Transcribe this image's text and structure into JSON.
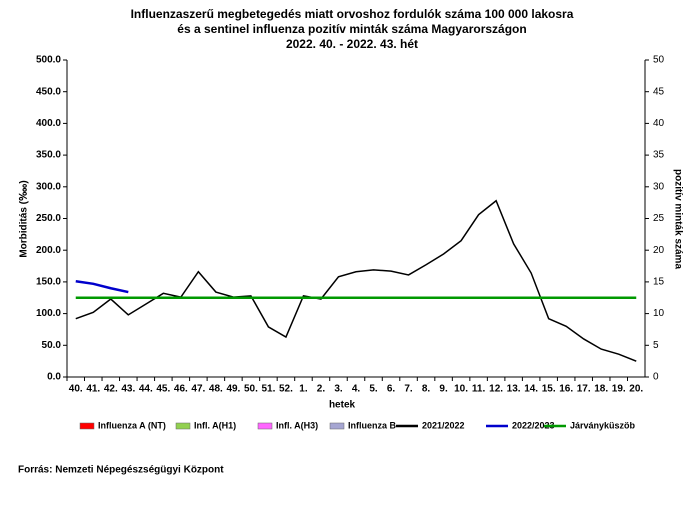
{
  "chart_data": {
    "type": "line",
    "title": [
      "Influenzaszerű megbetegedés miatt orvoshoz fordulók száma 100 000 lakosra",
      "és a sentinel influenza pozitív minták száma Magyarországon",
      "2022. 40. - 2022. 43. hét"
    ],
    "x_label": "hetek",
    "y_label": "Morbiditás (‱)",
    "y2_label": "pozitív minták száma",
    "source": "Forrás: Nemzeti Népegészségügyi Központ",
    "categories": [
      "40.",
      "41.",
      "42.",
      "43.",
      "44.",
      "45.",
      "46.",
      "47.",
      "48.",
      "49.",
      "50.",
      "51.",
      "52.",
      "1.",
      "2.",
      "3.",
      "4.",
      "5.",
      "6.",
      "7.",
      "8.",
      "9.",
      "10.",
      "11.",
      "12.",
      "13.",
      "14.",
      "15.",
      "16.",
      "17.",
      "18.",
      "19.",
      "20."
    ],
    "ylim": [
      0,
      500
    ],
    "yticks": [
      {
        "value": 0,
        "label": "0.0"
      },
      {
        "value": 50,
        "label": "50.0"
      },
      {
        "value": 100,
        "label": "100.0"
      },
      {
        "value": 150,
        "label": "150.0"
      },
      {
        "value": 200,
        "label": "200.0"
      },
      {
        "value": 250,
        "label": "250.0"
      },
      {
        "value": 300,
        "label": "300.0"
      },
      {
        "value": 350,
        "label": "350.0"
      },
      {
        "value": 400,
        "label": "400.0"
      },
      {
        "value": 450,
        "label": "450.0"
      },
      {
        "value": 500,
        "label": "500.0"
      }
    ],
    "y2lim": [
      0,
      50
    ],
    "y2ticks": [
      0,
      5,
      10,
      15,
      20,
      25,
      30,
      35,
      40,
      45,
      50
    ],
    "series": [
      {
        "name": "Influenza A (NT)",
        "color": "#ff0000",
        "type": "bar",
        "axis": "y2",
        "values": [
          null,
          null,
          null,
          null,
          null,
          null,
          null,
          null,
          null,
          null,
          null,
          null,
          null,
          null,
          null,
          null,
          null,
          null,
          null,
          null,
          null,
          null,
          null,
          null,
          null,
          null,
          null,
          null,
          null,
          null,
          null,
          null,
          null
        ]
      },
      {
        "name": "Infl. A(H1)",
        "color": "#92d050",
        "type": "bar",
        "axis": "y2",
        "values": [
          null,
          null,
          null,
          null,
          null,
          null,
          null,
          null,
          null,
          null,
          null,
          null,
          null,
          null,
          null,
          null,
          null,
          null,
          null,
          null,
          null,
          null,
          null,
          null,
          null,
          null,
          null,
          null,
          null,
          null,
          null,
          null,
          null
        ]
      },
      {
        "name": "Infl. A(H3)",
        "color": "#ff66ff",
        "type": "bar",
        "axis": "y2",
        "values": [
          null,
          null,
          null,
          null,
          null,
          null,
          null,
          null,
          null,
          null,
          null,
          null,
          null,
          null,
          null,
          null,
          null,
          null,
          null,
          null,
          null,
          null,
          null,
          null,
          null,
          null,
          null,
          null,
          null,
          null,
          null,
          null,
          null
        ]
      },
      {
        "name": "Influenza B",
        "color": "#a6a6d2",
        "type": "bar",
        "axis": "y2",
        "values": [
          null,
          null,
          null,
          null,
          null,
          null,
          null,
          null,
          null,
          null,
          null,
          null,
          null,
          null,
          null,
          null,
          null,
          null,
          null,
          null,
          null,
          null,
          null,
          null,
          null,
          null,
          null,
          null,
          null,
          null,
          null,
          null,
          null
        ]
      },
      {
        "name": "2021/2022",
        "color": "#000000",
        "type": "line",
        "values": [
          92,
          102,
          123,
          98,
          115,
          132,
          126,
          166,
          134,
          126,
          128,
          79,
          63,
          128,
          123,
          158,
          166,
          169,
          167,
          161,
          177,
          194,
          215,
          256,
          278,
          210,
          164,
          92,
          80,
          60,
          44,
          36,
          25
        ]
      },
      {
        "name": "2022/2023",
        "color": "#0000cc",
        "type": "line",
        "values": [
          151,
          147,
          140,
          134,
          null,
          null,
          null,
          null,
          null,
          null,
          null,
          null,
          null,
          null,
          null,
          null,
          null,
          null,
          null,
          null,
          null,
          null,
          null,
          null,
          null,
          null,
          null,
          null,
          null,
          null,
          null,
          null,
          null
        ]
      },
      {
        "name": "Járványküszöb",
        "color": "#009900",
        "type": "line",
        "values": [
          125,
          125,
          125,
          125,
          125,
          125,
          125,
          125,
          125,
          125,
          125,
          125,
          125,
          125,
          125,
          125,
          125,
          125,
          125,
          125,
          125,
          125,
          125,
          125,
          125,
          125,
          125,
          125,
          125,
          125,
          125,
          125,
          125
        ]
      }
    ]
  }
}
